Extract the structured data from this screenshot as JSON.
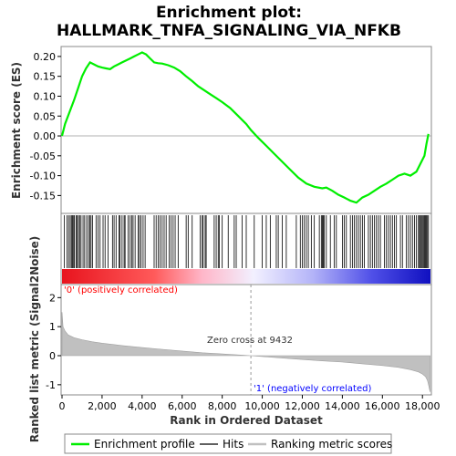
{
  "chart_data": {
    "type": "line",
    "title_line1": "Enrichment plot:",
    "title_line2": "HALLMARK_TNFA_SIGNALING_VIA_NFKB",
    "ylabel_top": "Enrichment score (ES)",
    "ylabel_bottom": "Ranked list metric (Signal2Noise)",
    "xlabel": "Rank in Ordered Dataset",
    "x_ticks": [
      "0",
      "2,000",
      "4,000",
      "6,000",
      "8,000",
      "10,000",
      "12,000",
      "14,000",
      "16,000",
      "18,000"
    ],
    "x_tick_values": [
      0,
      2000,
      4000,
      6000,
      8000,
      10000,
      12000,
      14000,
      16000,
      18000
    ],
    "xlim": [
      0,
      18400
    ],
    "es_y_ticks": [
      "0.20",
      "0.15",
      "0.10",
      "0.05",
      "0.00",
      "-0.05",
      "-0.10",
      "-0.15"
    ],
    "es_y_tick_values": [
      0.2,
      0.15,
      0.1,
      0.05,
      0.0,
      -0.05,
      -0.1,
      -0.15
    ],
    "es_ylim": [
      -0.195,
      0.225
    ],
    "metric_y_ticks": [
      "2",
      "1",
      "0",
      "-1"
    ],
    "metric_y_tick_values": [
      2,
      1,
      0,
      -1
    ],
    "metric_ylim": [
      -1.35,
      2.45
    ],
    "zero_cross_label": "Zero cross at 9432",
    "zero_cross_rank": 9432,
    "positive_label": "'0' (positively correlated)",
    "negative_label": "'1' (negatively correlated)",
    "legend": [
      "Enrichment profile",
      "Hits",
      "Ranking metric scores"
    ],
    "colors": {
      "enrichment": "#00ee00",
      "hits": "#000000",
      "metric_fill": "#c0c0c0",
      "positive_text": "#ff0000",
      "negative_text": "#0000ff",
      "zero_cross_text": "#333333"
    },
    "series": [
      {
        "name": "Enrichment profile",
        "x": [
          0,
          150,
          300,
          450,
          600,
          800,
          1000,
          1200,
          1400,
          1600,
          1800,
          2000,
          2200,
          2400,
          2600,
          2800,
          3000,
          3200,
          3400,
          3600,
          3800,
          4000,
          4200,
          4400,
          4600,
          4800,
          5000,
          5300,
          5600,
          5900,
          6200,
          6500,
          6800,
          7100,
          7400,
          7700,
          8000,
          8400,
          8800,
          9200,
          9432,
          9800,
          10200,
          10600,
          11000,
          11400,
          11800,
          12200,
          12600,
          13000,
          13200,
          13500,
          13800,
          14100,
          14400,
          14700,
          15000,
          15300,
          15600,
          15900,
          16200,
          16500,
          16800,
          17100,
          17400,
          17700,
          17900,
          18100,
          18200,
          18300
        ],
        "y": [
          0.0,
          0.03,
          0.05,
          0.07,
          0.09,
          0.12,
          0.15,
          0.17,
          0.185,
          0.18,
          0.175,
          0.172,
          0.17,
          0.168,
          0.175,
          0.18,
          0.185,
          0.19,
          0.195,
          0.2,
          0.205,
          0.21,
          0.205,
          0.195,
          0.185,
          0.183,
          0.182,
          0.178,
          0.172,
          0.163,
          0.15,
          0.138,
          0.125,
          0.115,
          0.105,
          0.095,
          0.085,
          0.07,
          0.05,
          0.03,
          0.015,
          -0.005,
          -0.025,
          -0.045,
          -0.065,
          -0.085,
          -0.105,
          -0.12,
          -0.128,
          -0.132,
          -0.13,
          -0.138,
          -0.148,
          -0.155,
          -0.163,
          -0.168,
          -0.155,
          -0.148,
          -0.138,
          -0.128,
          -0.12,
          -0.11,
          -0.1,
          -0.095,
          -0.1,
          -0.09,
          -0.07,
          -0.05,
          -0.02,
          0.005
        ]
      }
    ],
    "hits": [
      120,
      250,
      330,
      410,
      470,
      520,
      580,
      620,
      700,
      760,
      820,
      880,
      950,
      1050,
      1130,
      1230,
      1320,
      1390,
      1450,
      1520,
      1700,
      1800,
      1900,
      2050,
      2150,
      2300,
      2520,
      2600,
      2700,
      2850,
      2900,
      3000,
      3100,
      3150,
      3300,
      3400,
      3480,
      3550,
      3650,
      3800,
      3870,
      3950,
      4050,
      4150,
      4600,
      4700,
      4800,
      4900,
      5000,
      5100,
      5200,
      5350,
      5450,
      5550,
      5650,
      5800,
      6200,
      6300,
      6500,
      6900,
      7000,
      7050,
      7150,
      7200,
      7600,
      7700,
      7800,
      7850,
      8000,
      8300,
      8600,
      8700,
      9000,
      9200,
      9600,
      10000,
      10200,
      10400,
      10700,
      10800,
      11000,
      11200,
      11700,
      11900,
      12000,
      12100,
      12200,
      12300,
      12450,
      12600,
      12850,
      12950,
      13000,
      13050,
      13100,
      13200,
      13400,
      13600,
      13700,
      14000,
      14100,
      14200,
      14400,
      14500,
      14600,
      14700,
      14800,
      14900,
      15000,
      15100,
      15300,
      15400,
      15500,
      15600,
      15700,
      15800,
      15900,
      16100,
      16200,
      16300,
      16400,
      16500,
      16600,
      16700,
      16900,
      17000,
      17200,
      17300,
      17400,
      17500,
      17600,
      17700,
      17800,
      17850,
      17900,
      17950,
      18000,
      18050,
      18100,
      18150,
      18200,
      18250,
      18300
    ],
    "metric_curve": {
      "x": [
        0,
        50,
        150,
        300,
        600,
        1000,
        1500,
        2000,
        3000,
        4000,
        5000,
        6000,
        7000,
        8000,
        9000,
        9432,
        10000,
        11000,
        12000,
        13000,
        14000,
        15000,
        16000,
        16800,
        17400,
        17800,
        18000,
        18150,
        18250,
        18320,
        18380
      ],
      "y": [
        1.5,
        1.0,
        0.85,
        0.72,
        0.62,
        0.55,
        0.48,
        0.43,
        0.35,
        0.28,
        0.22,
        0.16,
        0.1,
        0.06,
        0.02,
        0.0,
        -0.03,
        -0.08,
        -0.13,
        -0.18,
        -0.22,
        -0.28,
        -0.34,
        -0.4,
        -0.48,
        -0.56,
        -0.63,
        -0.72,
        -0.85,
        -1.05,
        -1.25
      ]
    }
  }
}
